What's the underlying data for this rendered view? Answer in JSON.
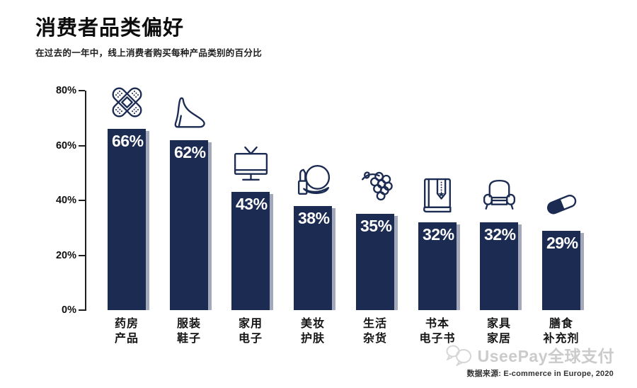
{
  "chart_data": {
    "type": "bar",
    "title": "消费者品类偏好",
    "subtitle": "在过去的一年中，线上消费者购买每种产品类别的百分比",
    "categories": [
      "药房产品",
      "服装鞋子",
      "家用电子",
      "美妆护肤",
      "生活杂货",
      "书本电子书",
      "家具家居",
      "膳食补充剂"
    ],
    "category_lines": [
      [
        "药房",
        "产品"
      ],
      [
        "服装",
        "鞋子"
      ],
      [
        "家用",
        "电子"
      ],
      [
        "美妆",
        "护肤"
      ],
      [
        "生活",
        "杂货"
      ],
      [
        "书本",
        "电子书"
      ],
      [
        "家具",
        "家居"
      ],
      [
        "膳食",
        "补充剂"
      ]
    ],
    "values": [
      66,
      62,
      43,
      38,
      35,
      32,
      32,
      29
    ],
    "value_labels": [
      "66%",
      "62%",
      "43%",
      "38%",
      "35%",
      "32%",
      "32%",
      "29%"
    ],
    "icons": [
      "bandage-icon",
      "high-heel-icon",
      "tv-icon",
      "cosmetics-icon",
      "grapes-icon",
      "book-icon",
      "armchair-icon",
      "capsule-icon"
    ],
    "xlabel": "",
    "ylabel": "",
    "ylim": [
      0,
      80
    ],
    "yticks": [
      "80%",
      "60%",
      "40%",
      "20%",
      "0%"
    ],
    "grid": false,
    "legend": null,
    "bar_color": "#1b2b52",
    "bar_shadow_color": "#a3a9bb",
    "value_label_color": "#ffffff"
  },
  "footer": {
    "watermark_logo": "chat-bubbles-icon",
    "watermark_text": "UseePay全球支付",
    "source": "数据来源: E-commerce in Europe, 2020"
  },
  "colors": {
    "background": "#ffffff",
    "bar": "#1b2b52",
    "bar_shadow": "#a3a9bb",
    "axis": "#1f1f1f",
    "watermark": "#cbcbcb"
  }
}
